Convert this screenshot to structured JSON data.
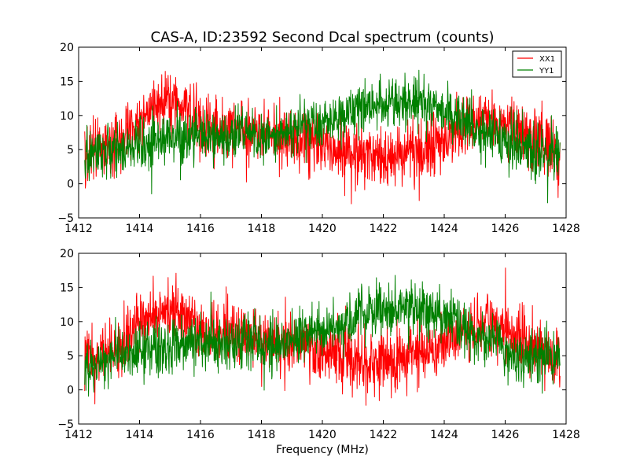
{
  "title": "CAS-A, ID:23592 Second Dcal spectrum (counts)",
  "xlabel": "Frequency (MHz)",
  "colors": {
    "XX1": "#ff0000",
    "YY1": "#008000"
  },
  "legend": {
    "placement": "top-right",
    "entries": [
      {
        "label": "XX1",
        "color": "#ff0000"
      },
      {
        "label": "YY1",
        "color": "#008000"
      }
    ]
  },
  "chart_data": [
    {
      "type": "line",
      "title": "CAS-A, ID:23592 Second Dcal spectrum (counts)",
      "xlabel": "",
      "ylabel": "",
      "xlim": [
        1412,
        1428
      ],
      "ylim": [
        -5,
        20
      ],
      "xticks": [
        "1412",
        "1414",
        "1416",
        "1418",
        "1420",
        "1422",
        "1424",
        "1426",
        "1428"
      ],
      "yticks": [
        "20",
        "15",
        "10",
        "5",
        "0",
        "−5"
      ],
      "grid": false,
      "legend": "top-right",
      "series": [
        {
          "name": "XX1",
          "color": "#ff0000",
          "noise": 2.2,
          "x": [
            1412.2,
            1413.0,
            1413.5,
            1414.0,
            1414.5,
            1415.0,
            1415.5,
            1416.0,
            1416.5,
            1417.0,
            1417.5,
            1418.0,
            1418.5,
            1419.0,
            1419.5,
            1420.0,
            1420.5,
            1421.0,
            1421.5,
            1422.0,
            1422.5,
            1423.0,
            1423.5,
            1424.0,
            1424.5,
            1425.0,
            1425.5,
            1426.0,
            1426.5,
            1427.0,
            1427.8
          ],
          "y": [
            4.5,
            5.5,
            7.0,
            9.5,
            11.0,
            11.8,
            11.5,
            8.5,
            8.0,
            8.3,
            7.5,
            7.0,
            6.8,
            6.5,
            6.3,
            5.5,
            5.0,
            4.6,
            4.4,
            4.3,
            4.5,
            5.0,
            5.6,
            6.5,
            7.8,
            9.0,
            9.5,
            9.0,
            8.0,
            6.5,
            4.5
          ]
        },
        {
          "name": "YY1",
          "color": "#008000",
          "noise": 1.9,
          "x": [
            1412.2,
            1413.0,
            1413.5,
            1414.0,
            1414.5,
            1415.0,
            1415.5,
            1416.0,
            1416.5,
            1417.0,
            1417.5,
            1418.0,
            1418.5,
            1419.0,
            1419.5,
            1420.0,
            1420.5,
            1421.0,
            1421.5,
            1422.0,
            1422.5,
            1423.0,
            1423.5,
            1424.0,
            1424.5,
            1425.0,
            1425.5,
            1426.0,
            1426.5,
            1427.0,
            1427.8
          ],
          "y": [
            3.5,
            4.5,
            5.0,
            5.5,
            6.0,
            6.5,
            7.0,
            7.0,
            7.0,
            7.0,
            7.0,
            6.8,
            7.0,
            7.5,
            8.0,
            8.8,
            9.5,
            10.5,
            11.3,
            11.8,
            12.0,
            12.0,
            11.5,
            10.5,
            9.5,
            8.0,
            7.0,
            6.0,
            5.5,
            4.8,
            4.0
          ]
        }
      ]
    },
    {
      "type": "line",
      "title": "",
      "xlabel": "Frequency (MHz)",
      "ylabel": "",
      "xlim": [
        1412,
        1428
      ],
      "ylim": [
        -5,
        20
      ],
      "xticks": [
        "1412",
        "1414",
        "1416",
        "1418",
        "1420",
        "1422",
        "1424",
        "1426",
        "1428"
      ],
      "yticks": [
        "20",
        "15",
        "10",
        "5",
        "0",
        "−5"
      ],
      "grid": false,
      "legend": "none",
      "series": [
        {
          "name": "XX1",
          "color": "#ff0000",
          "noise": 2.2,
          "x": [
            1412.2,
            1413.0,
            1413.5,
            1414.0,
            1414.5,
            1415.0,
            1415.5,
            1416.0,
            1416.5,
            1417.0,
            1417.5,
            1418.0,
            1418.5,
            1419.0,
            1419.5,
            1420.0,
            1420.5,
            1421.0,
            1421.5,
            1422.0,
            1422.5,
            1423.0,
            1423.5,
            1424.0,
            1424.5,
            1425.0,
            1425.5,
            1426.0,
            1426.5,
            1427.0,
            1427.8
          ],
          "y": [
            4.5,
            5.5,
            7.0,
            9.5,
            11.0,
            11.8,
            11.5,
            8.5,
            8.0,
            8.3,
            7.5,
            7.0,
            6.8,
            6.5,
            6.3,
            5.5,
            5.0,
            4.6,
            4.4,
            4.3,
            4.5,
            5.0,
            5.6,
            6.5,
            7.8,
            9.0,
            9.5,
            9.0,
            8.0,
            6.5,
            4.5
          ]
        },
        {
          "name": "YY1",
          "color": "#008000",
          "noise": 1.9,
          "x": [
            1412.2,
            1413.0,
            1413.5,
            1414.0,
            1414.5,
            1415.0,
            1415.5,
            1416.0,
            1416.5,
            1417.0,
            1417.5,
            1418.0,
            1418.5,
            1419.0,
            1419.5,
            1420.0,
            1420.5,
            1421.0,
            1421.5,
            1422.0,
            1422.5,
            1423.0,
            1423.5,
            1424.0,
            1424.5,
            1425.0,
            1425.5,
            1426.0,
            1426.5,
            1427.0,
            1427.8
          ],
          "y": [
            3.5,
            4.5,
            5.0,
            5.5,
            6.0,
            6.5,
            7.0,
            7.0,
            7.0,
            7.0,
            7.0,
            6.8,
            7.0,
            7.5,
            8.0,
            8.8,
            9.5,
            10.5,
            11.3,
            11.8,
            12.0,
            12.0,
            11.5,
            10.5,
            9.5,
            8.0,
            7.0,
            6.0,
            5.5,
            4.8,
            4.0
          ]
        }
      ]
    }
  ]
}
